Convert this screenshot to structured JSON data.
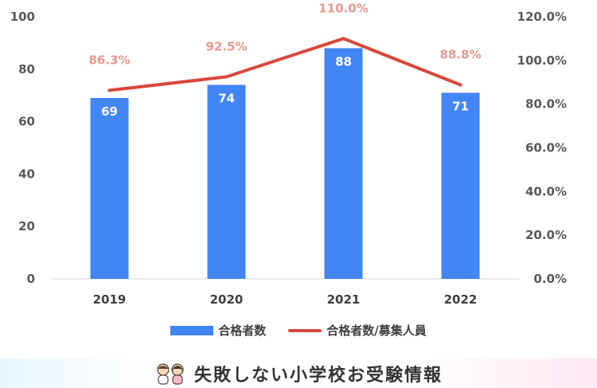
{
  "chart_data": {
    "type": "bar",
    "categories": [
      "2019",
      "2020",
      "2021",
      "2022"
    ],
    "series": [
      {
        "name": "合格者数",
        "kind": "bar",
        "axis": "left",
        "values": [
          69,
          74,
          88,
          71
        ],
        "labels": [
          "69",
          "74",
          "88",
          "71"
        ],
        "color": "#4285f4"
      },
      {
        "name": "合格者数/募集人員",
        "kind": "line",
        "axis": "right",
        "values": [
          86.3,
          92.5,
          110.0,
          88.8
        ],
        "labels": [
          "86.3%",
          "92.5%",
          "110.0%",
          "88.8%"
        ],
        "color": "#d9483b"
      }
    ],
    "ylim_left": [
      0,
      100
    ],
    "yticks_left": [
      "0",
      "20",
      "40",
      "60",
      "80",
      "100"
    ],
    "ylim_right": [
      0,
      120
    ],
    "yticks_right": [
      "0.0%",
      "20.0%",
      "40.0%",
      "60.0%",
      "80.0%",
      "100.0%",
      "120.0%"
    ],
    "grid": false,
    "legend_position": "bottom"
  },
  "footer": {
    "text": "失敗しない小学校お受験情報"
  }
}
